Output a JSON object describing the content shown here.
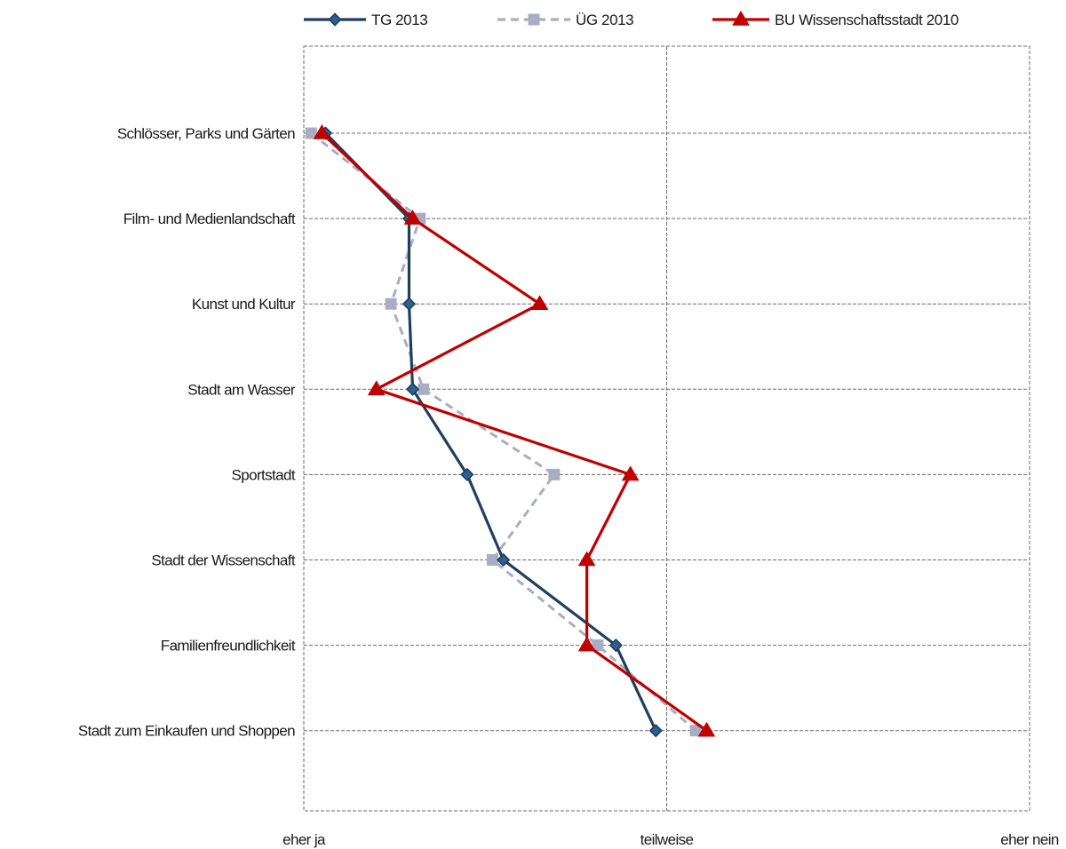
{
  "chart_data": {
    "type": "line",
    "orientation": "horizontal-categories",
    "categories": [
      "Schlösser, Parks und Gärten",
      "Film- und Medienlandschaft",
      "Kunst und Kultur",
      "Stadt am Wasser",
      "Sportstadt",
      "Stadt der Wissenschaft",
      "Familienfreundlichkeit",
      "Stadt zum Einkaufen und Shoppen"
    ],
    "x_ticks": [
      {
        "value": 1,
        "label": "eher ja"
      },
      {
        "value": 2,
        "label": "teilweise"
      },
      {
        "value": 3,
        "label": "eher nein"
      }
    ],
    "xlim": [
      1,
      3
    ],
    "grid": true,
    "legend_position": "top",
    "series": [
      {
        "name": "TG  2013",
        "color": "#1f3f5f",
        "marker": "diamond",
        "dash": "solid",
        "values": [
          1.06,
          1.29,
          1.29,
          1.3,
          1.45,
          1.55,
          1.86,
          1.97
        ]
      },
      {
        "name": "ÜG  2013",
        "color": "#a9adc4",
        "marker": "square",
        "dash": "dashed",
        "values": [
          1.02,
          1.32,
          1.24,
          1.33,
          1.69,
          1.52,
          1.81,
          2.08
        ]
      },
      {
        "name": "BU Wissenschaftsstadt 2010",
        "color": "#c00000",
        "marker": "triangle",
        "dash": "solid",
        "values": [
          1.05,
          1.3,
          1.65,
          1.2,
          1.9,
          1.78,
          1.78,
          2.11
        ]
      }
    ]
  }
}
